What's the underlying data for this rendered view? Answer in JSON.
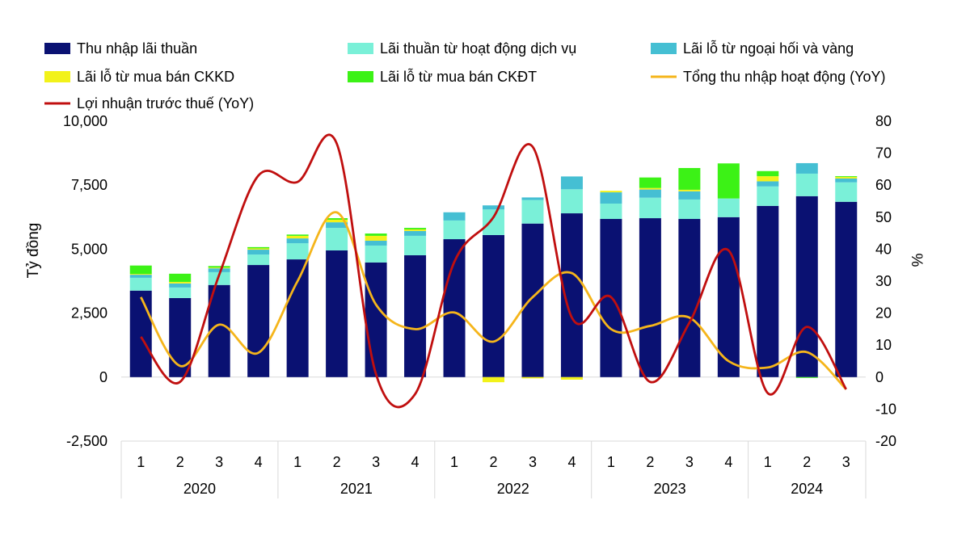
{
  "chart_data": {
    "type": "bar",
    "stacked": true,
    "categories": [
      "1",
      "2",
      "3",
      "4",
      "1",
      "2",
      "3",
      "4",
      "1",
      "2",
      "3",
      "4",
      "1",
      "2",
      "3",
      "4",
      "1",
      "2",
      "3"
    ],
    "groups": [
      {
        "label": "2020",
        "count": 4
      },
      {
        "label": "2021",
        "count": 4
      },
      {
        "label": "2022",
        "count": 4
      },
      {
        "label": "2023",
        "count": 4
      },
      {
        "label": "2024",
        "count": 3
      }
    ],
    "ylabel": "Tỷ đồng",
    "y2label": "%",
    "ylim": [
      -2500,
      10000
    ],
    "yticks": [
      -2500,
      0,
      2500,
      5000,
      7500,
      10000
    ],
    "ytick_labels": [
      "-2,500",
      "0",
      "2,500",
      "5,000",
      "7,500",
      "10,000"
    ],
    "y2lim": [
      -20,
      80
    ],
    "y2ticks": [
      -20,
      -10,
      0,
      10,
      20,
      30,
      40,
      50,
      60,
      70,
      80
    ],
    "y2tick_labels": [
      "-20",
      "-10",
      "0",
      "10",
      "20",
      "30",
      "40",
      "50",
      "60",
      "70",
      "80"
    ],
    "grid": false,
    "legend_position": "top",
    "series": [
      {
        "name": "Thu nhập lãi thuần",
        "type": "bar",
        "axis": "left",
        "color": "#0a1172",
        "values": [
          3380,
          3090,
          3600,
          4380,
          4600,
          4950,
          4480,
          4760,
          5390,
          5550,
          6000,
          6400,
          6180,
          6210,
          6180,
          6250,
          6690,
          7070,
          6850
        ]
      },
      {
        "name": "Lãi thuần từ hoạt động dịch vụ",
        "type": "bar",
        "axis": "left",
        "color": "#7af0d8",
        "values": [
          500,
          410,
          500,
          410,
          630,
          880,
          660,
          760,
          730,
          1000,
          920,
          940,
          600,
          800,
          760,
          730,
          760,
          880,
          760
        ]
      },
      {
        "name": "Lãi lỗ từ ngoại hối và vàng",
        "type": "bar",
        "axis": "left",
        "color": "#45bfd3",
        "values": [
          120,
          160,
          150,
          190,
          190,
          220,
          190,
          190,
          320,
          160,
          100,
          500,
          440,
          320,
          320,
          0,
          200,
          410,
          150
        ]
      },
      {
        "name": "Lãi lỗ từ mua bán CKKD",
        "type": "bar",
        "axis": "left",
        "color": "#f2f21a",
        "values": [
          30,
          60,
          30,
          50,
          100,
          100,
          190,
          60,
          0,
          -200,
          -50,
          -100,
          60,
          60,
          60,
          0,
          200,
          0,
          60
        ]
      },
      {
        "name": "Lãi lỗ từ mua bán CKĐT",
        "type": "bar",
        "axis": "left",
        "color": "#3cf216",
        "values": [
          330,
          320,
          60,
          50,
          50,
          60,
          90,
          60,
          0,
          0,
          0,
          0,
          0,
          410,
          850,
          1370,
          200,
          -30,
          30
        ]
      },
      {
        "name": "Tổng thu nhập hoạt động (YoY)",
        "type": "line",
        "axis": "right",
        "color": "#f5b51b",
        "values": [
          25,
          3.5,
          16.4,
          7.6,
          30,
          51.5,
          22.7,
          15,
          20.2,
          11.1,
          25,
          32.5,
          15,
          16,
          18.6,
          5,
          3,
          7.8,
          -3.8
        ]
      },
      {
        "name": "Lợi nhuận trước thuế (YoY)",
        "type": "line",
        "axis": "right",
        "color": "#c00f0f",
        "values": [
          12.6,
          -1.5,
          32,
          63,
          61,
          73,
          1,
          -5.3,
          36,
          50,
          72,
          18.6,
          25,
          -1.5,
          17,
          39.6,
          -5,
          15.7,
          -3.8
        ]
      }
    ]
  }
}
